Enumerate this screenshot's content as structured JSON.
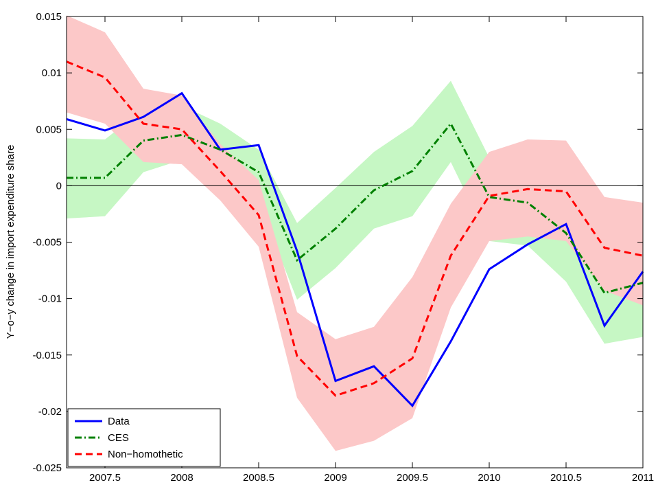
{
  "chart_data": {
    "type": "line",
    "ylabel": "Y−o−y change in import expenditure share",
    "x": [
      2007.25,
      2007.5,
      2007.75,
      2008,
      2008.25,
      2008.5,
      2008.75,
      2009,
      2009.25,
      2009.5,
      2009.75,
      2010,
      2010.25,
      2010.5,
      2010.75,
      2011
    ],
    "xlim": [
      2007.25,
      2011
    ],
    "xticks": [
      2007.5,
      2008,
      2008.5,
      2009,
      2009.5,
      2010,
      2010.5,
      2011
    ],
    "ylim": [
      -0.025,
      0.015
    ],
    "yticks": [
      -0.025,
      -0.02,
      -0.015,
      -0.01,
      -0.005,
      0,
      0.005,
      0.01,
      0.015
    ],
    "zero_line": 0,
    "legend": "lower left",
    "series": [
      {
        "name": "Data",
        "color": "#0000ff",
        "style": "solid",
        "values": [
          0.0059,
          0.0049,
          0.0061,
          0.0082,
          0.0032,
          0.0036,
          -0.0058,
          -0.0173,
          -0.016,
          -0.0195,
          -0.0138,
          -0.0074,
          -0.0052,
          -0.0034,
          -0.0124,
          -0.0076
        ]
      },
      {
        "name": "CES",
        "color": "#008000",
        "style": "dashdot",
        "band_color": "#c6f7c4",
        "values": [
          0.0007,
          0.0007,
          0.004,
          0.0045,
          0.0032,
          0.0012,
          -0.0066,
          -0.0038,
          -0.0004,
          0.0013,
          0.0055,
          -0.001,
          -0.0015,
          -0.0042,
          -0.0095,
          -0.0086
        ],
        "upper": [
          0.0042,
          0.0041,
          0.0068,
          0.0071,
          0.0055,
          0.0032,
          -0.0033,
          -0.0002,
          0.003,
          0.0053,
          0.0093,
          0.0025,
          0.0004,
          -0.0018,
          -0.0079,
          -0.0073
        ],
        "lower": [
          -0.0029,
          -0.0027,
          0.0012,
          0.0023,
          0.0005,
          -0.0015,
          -0.0101,
          -0.0073,
          -0.0038,
          -0.0027,
          0.0021,
          -0.0049,
          -0.0053,
          -0.0085,
          -0.014,
          -0.0134
        ]
      },
      {
        "name": "Non−homothetic",
        "color": "#ff0000",
        "style": "dashed",
        "band_color": "#fcc8c8",
        "values": [
          0.011,
          0.0096,
          0.0055,
          0.005,
          0.0013,
          -0.0026,
          -0.0151,
          -0.0186,
          -0.0175,
          -0.0153,
          -0.0062,
          -0.0009,
          -0.0003,
          -0.0005,
          -0.0055,
          -0.0062
        ],
        "upper": [
          0.0151,
          0.0136,
          0.0086,
          0.008,
          0.0037,
          0.0005,
          -0.0112,
          -0.0136,
          -0.0125,
          -0.0081,
          -0.0016,
          0.003,
          0.0041,
          0.004,
          -0.001,
          -0.0015
        ],
        "lower": [
          0.0065,
          0.0055,
          0.0021,
          0.0019,
          -0.0013,
          -0.0054,
          -0.0188,
          -0.0235,
          -0.0226,
          -0.0206,
          -0.0108,
          -0.0049,
          -0.0045,
          -0.0049,
          -0.0093,
          -0.0106
        ]
      }
    ]
  }
}
